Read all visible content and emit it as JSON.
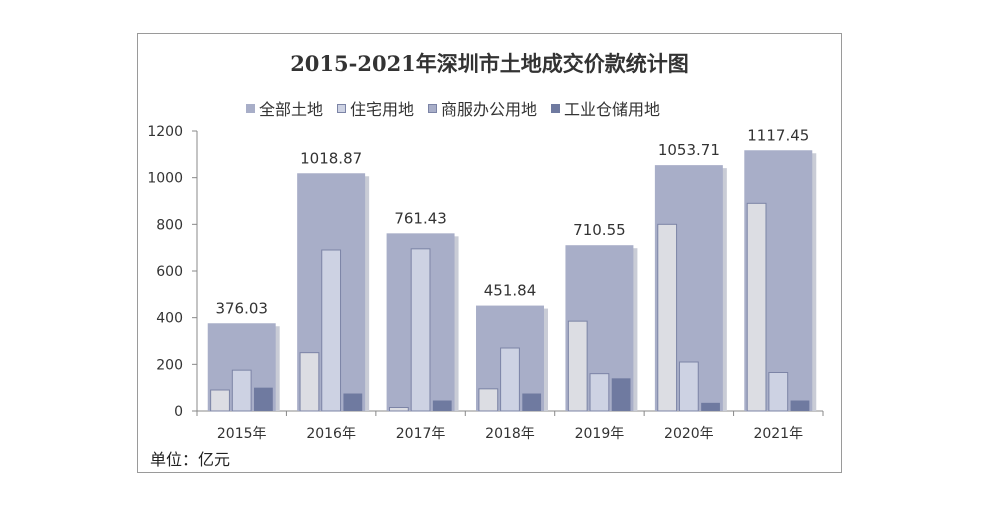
{
  "chart_data": {
    "type": "bar",
    "title": "2015-2021年深圳市土地成交价款统计图",
    "unit_label": "单位：亿元",
    "categories": [
      "2015年",
      "2016年",
      "2017年",
      "2018年",
      "2019年",
      "2020年",
      "2021年"
    ],
    "ylim": [
      0,
      1200
    ],
    "yticks": [
      0,
      200,
      400,
      600,
      800,
      1000,
      1200
    ],
    "grid": false,
    "legend_position": "top",
    "series": [
      {
        "name": "全部土地",
        "color": "#a8aec8",
        "values": [
          376.03,
          1018.87,
          761.43,
          451.84,
          710.55,
          1053.71,
          1117.45
        ],
        "labels": [
          "376.03",
          "1018.87",
          "761.43",
          "451.84",
          "710.55",
          "1053.71",
          "1117.45"
        ]
      },
      {
        "name": "住宅用地",
        "color": "#cdd2e3",
        "values": [
          175,
          690,
          695,
          270,
          160,
          210,
          165
        ]
      },
      {
        "name": "商服办公用地",
        "color": "#dcdde3",
        "values": [
          90,
          250,
          15,
          95,
          385,
          800,
          890
        ]
      },
      {
        "name": "工业仓储用地",
        "color": "#6f7aa0",
        "values": [
          100,
          75,
          45,
          75,
          140,
          35,
          45
        ]
      }
    ]
  }
}
